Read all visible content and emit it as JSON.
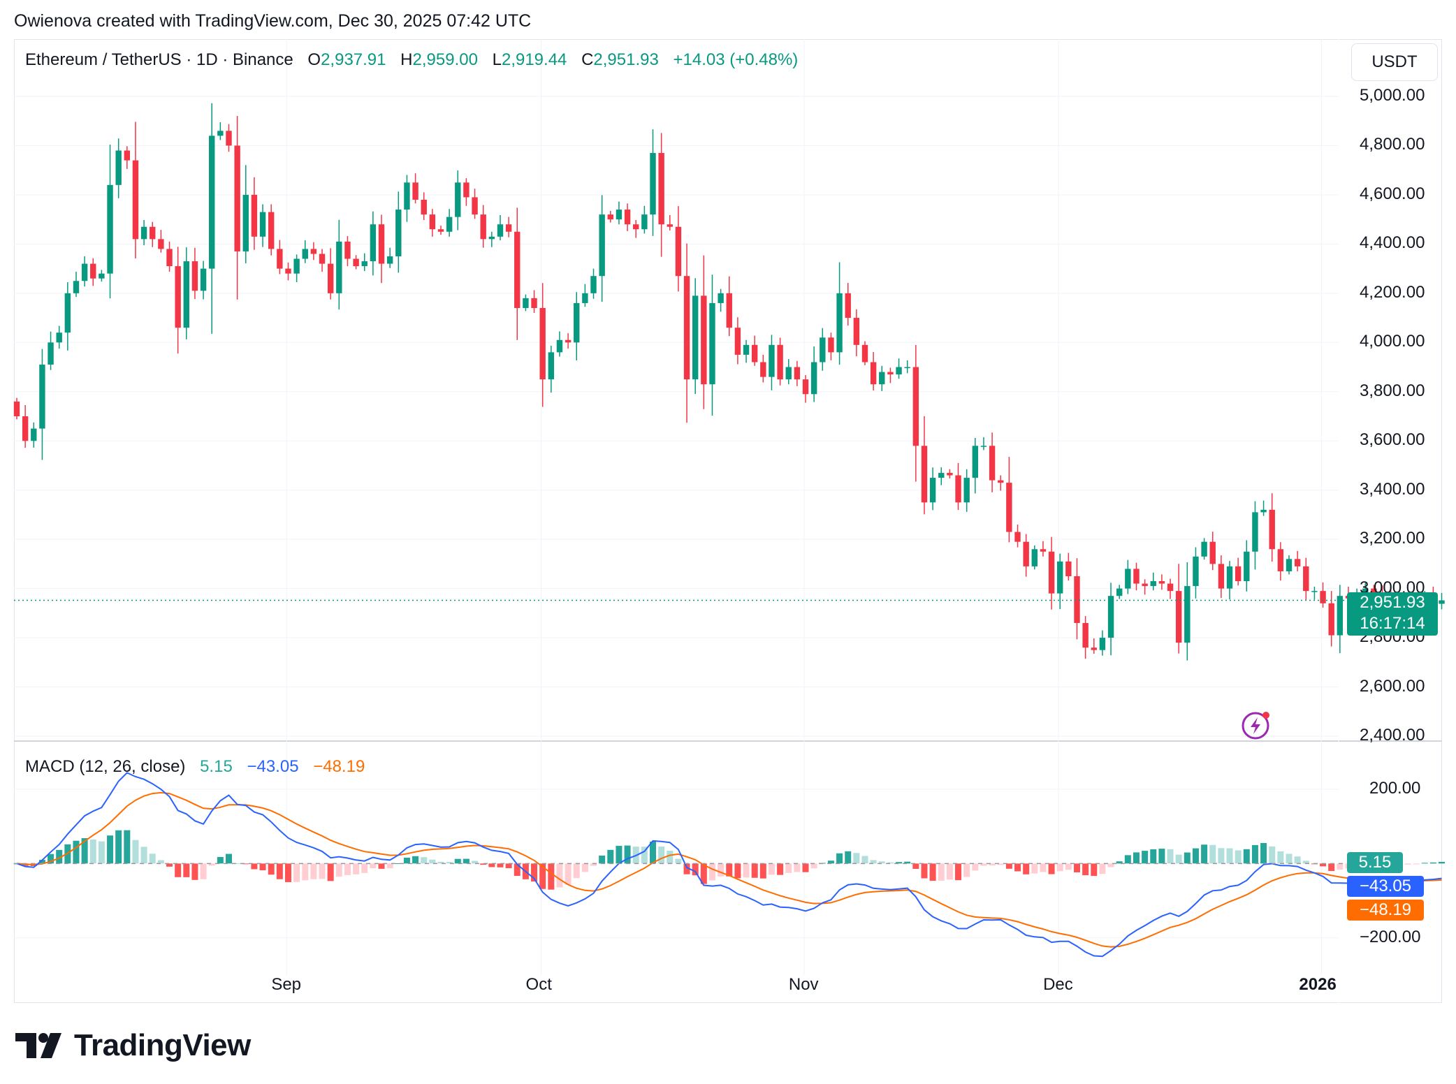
{
  "caption": "Owienova created with TradingView.com, Dec 30, 2025 07:42 UTC",
  "legend": {
    "symbol": "Ethereum / TetherUS · 1D · Binance",
    "open_label": "O",
    "open": "2,937.91",
    "high_label": "H",
    "high": "2,959.00",
    "low_label": "L",
    "low": "2,919.44",
    "close_label": "C",
    "close": "2,951.93",
    "change": "+14.03 (+0.48%)"
  },
  "currency": "USDT",
  "macd_legend": {
    "title": "MACD (12, 26, close)",
    "hist": "5.15",
    "macd": "−43.05",
    "signal": "−48.19"
  },
  "price_tags": {
    "last": "2,951.93",
    "countdown": "16:17:14",
    "hist": "5.15",
    "macd": "−43.05",
    "signal": "−48.19"
  },
  "price_axis": [
    "5,000.00",
    "4,800.00",
    "4,600.00",
    "4,400.00",
    "4,200.00",
    "4,000.00",
    "3,800.00",
    "3,600.00",
    "3,400.00",
    "3,200.00",
    "3,000.00",
    "2,800.00",
    "2,600.00",
    "2,400.00"
  ],
  "macd_axis": [
    "200.00",
    "−200.00"
  ],
  "time_axis": [
    "Sep",
    "Oct",
    "Nov",
    "Dec",
    "2026"
  ],
  "logo_text": "TradingView",
  "colors": {
    "up": "#089981",
    "down": "#f23645",
    "macd": "#2962ff",
    "signal": "#ff6d00",
    "grid": "#f0f3fa"
  },
  "chart_data": {
    "type": "candlestick",
    "symbol": "ETH/USDT",
    "interval": "1D",
    "start_date": "2025-08-01",
    "ylim": [
      2400,
      5000
    ],
    "closes": [
      3700,
      3600,
      3650,
      3910,
      4000,
      4040,
      4200,
      4250,
      4320,
      4260,
      4280,
      4640,
      4780,
      4740,
      4420,
      4470,
      4420,
      4380,
      4310,
      4060,
      4330,
      4210,
      4300,
      4840,
      4860,
      4800,
      4370,
      4600,
      4430,
      4530,
      4380,
      4300,
      4280,
      4340,
      4380,
      4360,
      4320,
      4200,
      4410,
      4340,
      4310,
      4330,
      4480,
      4320,
      4350,
      4540,
      4650,
      4580,
      4520,
      4460,
      4450,
      4510,
      4650,
      4590,
      4520,
      4420,
      4430,
      4480,
      4450,
      4140,
      4180,
      4140,
      3850,
      3960,
      4010,
      4000,
      4160,
      4200,
      4270,
      4520,
      4500,
      4540,
      4480,
      4460,
      4520,
      4770,
      4480,
      4470,
      4270,
      3850,
      4190,
      3830,
      4160,
      4200,
      4060,
      3950,
      3990,
      3920,
      3860,
      3990,
      3850,
      3900,
      3850,
      3790,
      3920,
      4020,
      3960,
      4200,
      4100,
      3990,
      3920,
      3830,
      3880,
      3870,
      3900,
      3900,
      3580,
      3350,
      3450,
      3470,
      3460,
      3350,
      3450,
      3580,
      3580,
      3440,
      3430,
      3230,
      3190,
      3090,
      3160,
      3150,
      2980,
      3110,
      3050,
      2860,
      2760,
      2750,
      2800,
      2970,
      3000,
      3080,
      3020,
      3010,
      3030,
      3020,
      2990,
      2780,
      3010,
      3130,
      3190,
      3100,
      3000,
      3090,
      3030,
      3150,
      3310,
      3320,
      3160,
      3070,
      3120,
      3090,
      2990,
      2990,
      2940,
      2810,
      2970,
      2960,
      2970,
      3000,
      2980,
      2970,
      2940,
      2900,
      2930,
      2920,
      2970,
      2940,
      2952
    ],
    "macd_ylim": [
      -300,
      320
    ],
    "indicators": [
      {
        "name": "MACD (12, 26, close)",
        "fast": 12,
        "slow": 26,
        "source": "close",
        "last_histogram": 5.15,
        "last_macd": -43.05,
        "last_signal": -48.19
      }
    ]
  }
}
